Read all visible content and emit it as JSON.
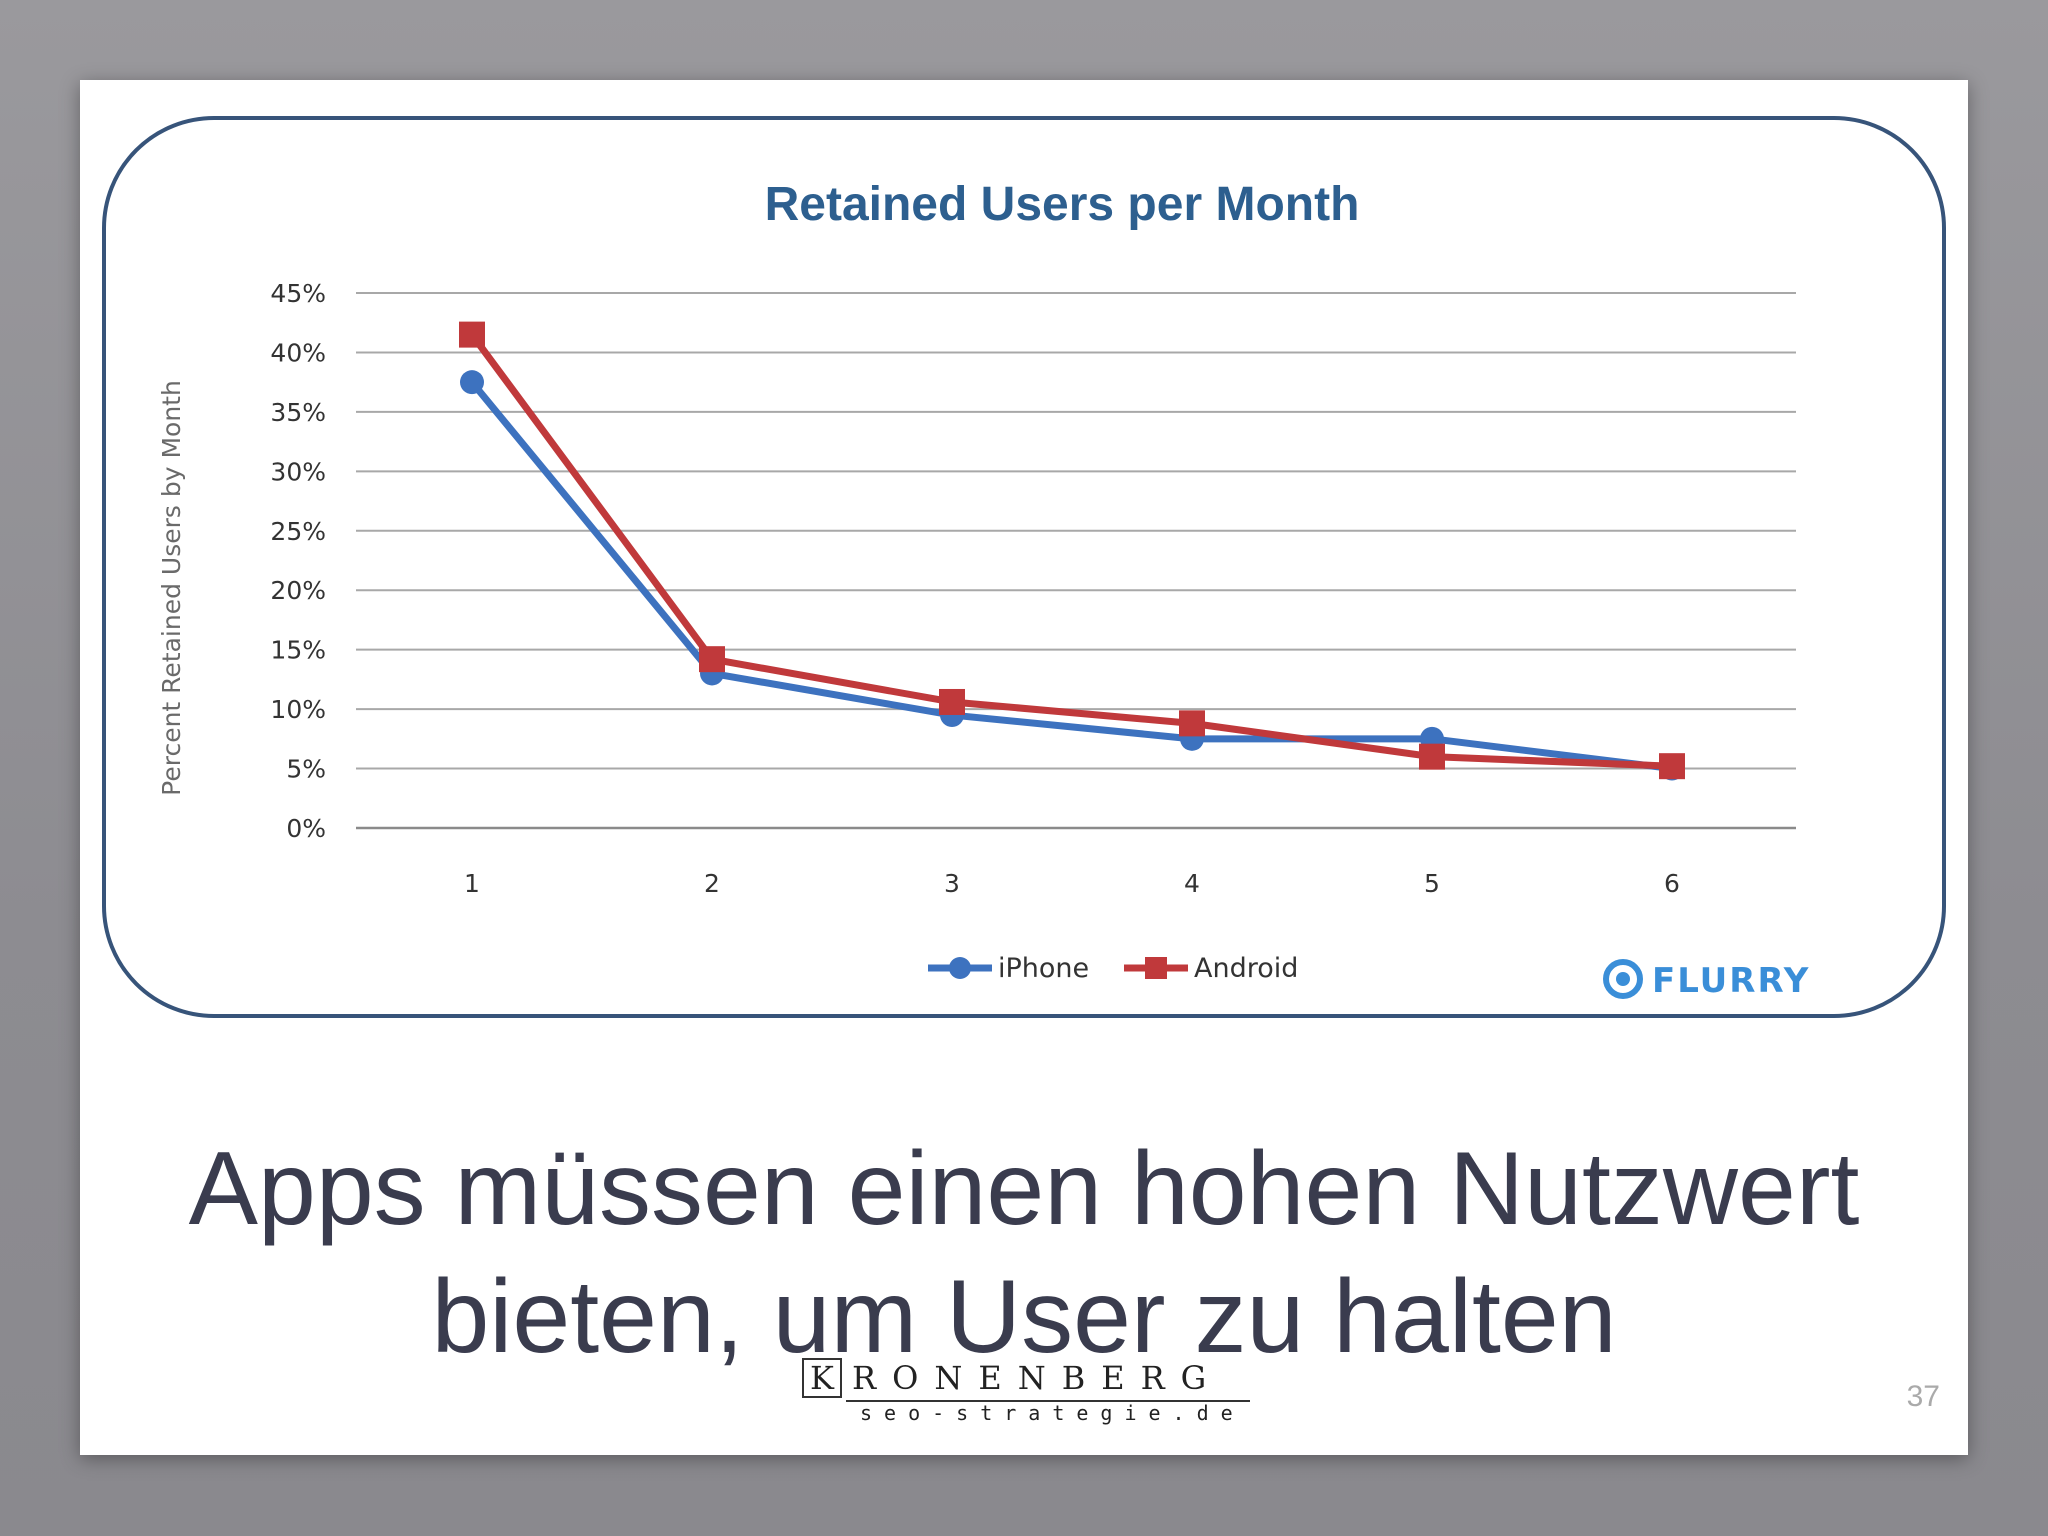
{
  "slide": {
    "headline_lines": [
      "Apps müssen einen hohen Nutzwert",
      "bieten, um User zu halten"
    ],
    "page_number": "37",
    "logo": {
      "initial": "K",
      "word": "RONENBERG",
      "subtitle": "seo-strategie.de"
    }
  },
  "chart_data": {
    "type": "line",
    "title": "Retained Users per Month",
    "xlabel": "",
    "ylabel": "Percent Retained Users by Month",
    "categories": [
      "1",
      "2",
      "3",
      "4",
      "5",
      "6"
    ],
    "y_ticks": [
      "0%",
      "5%",
      "10%",
      "15%",
      "20%",
      "25%",
      "30%",
      "35%",
      "40%",
      "45%"
    ],
    "ylim": [
      0,
      45
    ],
    "grid": true,
    "legend_position": "bottom",
    "series": [
      {
        "name": "iPhone",
        "values": [
          37.5,
          13,
          9.5,
          7.5,
          7.5,
          5
        ],
        "color": "#3d72bf",
        "marker": "circle"
      },
      {
        "name": "Android",
        "values": [
          41.5,
          14.2,
          10.6,
          8.8,
          6.0,
          5.2
        ],
        "color": "#c0393b",
        "marker": "square"
      }
    ],
    "watermark": "FLURRY",
    "frame_color": "#37547a",
    "title_color": "#2d5f8f"
  }
}
